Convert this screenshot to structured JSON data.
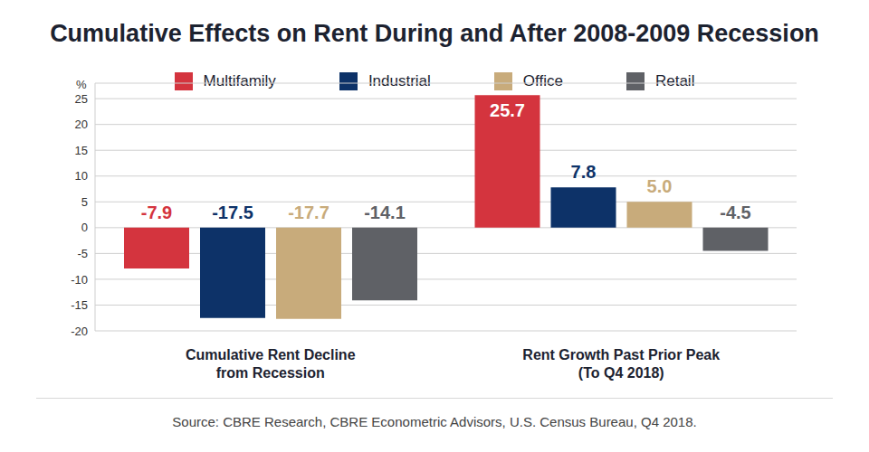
{
  "chart_data": {
    "type": "bar",
    "title": "Cumulative Effects on Rent During and After 2008-2009 Recession",
    "y_label": "%",
    "categories": [
      "Cumulative Rent Decline\nfrom Recession",
      "Rent Growth Past Prior Peak\n(To Q4 2018)"
    ],
    "series": [
      {
        "name": "Multifamily",
        "color": "#d4343e",
        "values": [
          -7.9,
          25.7
        ],
        "value_labels": [
          "-7.9",
          "25.7"
        ]
      },
      {
        "name": "Industrial",
        "color": "#0d3268",
        "values": [
          -17.5,
          7.8
        ],
        "value_labels": [
          "-17.5",
          "7.8"
        ]
      },
      {
        "name": "Office",
        "color": "#c8ab7b",
        "values": [
          -17.7,
          5
        ],
        "value_labels": [
          "-17.7",
          "5.0"
        ]
      },
      {
        "name": "Retail",
        "color": "#5f6166",
        "values": [
          -14.1,
          -4.5
        ],
        "value_labels": [
          "-14.1",
          "-4.5"
        ]
      }
    ],
    "ylim": [
      -20,
      28
    ],
    "yticks": [
      -20,
      -15,
      -10,
      -5,
      0,
      5,
      10,
      15,
      20,
      25
    ],
    "grid": true,
    "legend": "top",
    "data_labels": true,
    "source": "Source: CBRE Research, CBRE Econometric Advisors, U.S. Census Bureau, Q4 2018."
  }
}
